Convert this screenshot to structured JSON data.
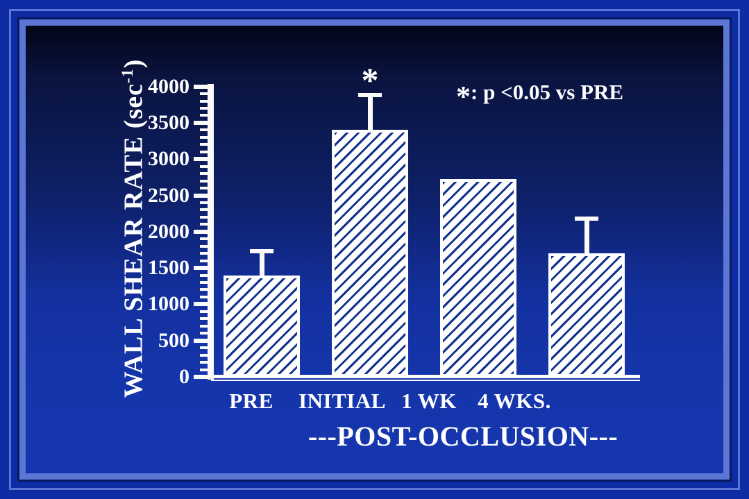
{
  "slide": {
    "frame_colors": {
      "outer_blue": "#0E2CA4",
      "light_ring": "#5C76D5",
      "dark_ring": "#081A5E",
      "background_top": "#020518",
      "background_bottom": "#1536AE"
    }
  },
  "chart_data": {
    "type": "bar",
    "title": "",
    "categories": [
      "PRE",
      "INITIAL",
      "1 WK",
      "4 WKS."
    ],
    "values": [
      1400,
      3400,
      2720,
      1700
    ],
    "error_top": [
      1750,
      3900,
      null,
      2200
    ],
    "significance": [
      null,
      "*",
      null,
      null
    ],
    "ylim": [
      0,
      4000
    ],
    "ytick_step": 500,
    "yminor_step": 100,
    "ytick_labels": [
      "0",
      "500",
      "1000",
      "1500",
      "2000",
      "2500",
      "3000",
      "3500",
      "4000"
    ],
    "ylabel_parts": {
      "base": "WALL SHEAR RATE (sec",
      "sup": "-1",
      "close": ")"
    },
    "xlabel": "---POST-OCCLUSION---",
    "annotation": {
      "symbol": "*",
      "text": ": p <0.05 vs PRE"
    },
    "grid": false,
    "legend": null,
    "colors": {
      "bar_fill": "#FFFFFF",
      "bar_hatch": "#10308F",
      "axis": "#FAFAFA",
      "text": "#FFFFFF"
    }
  }
}
